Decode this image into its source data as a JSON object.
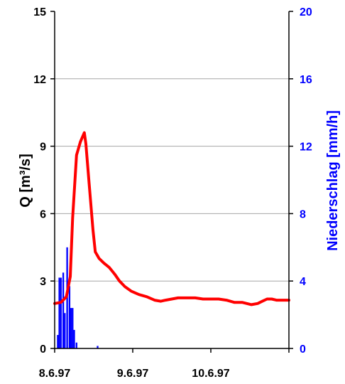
{
  "chart_data": {
    "type": "line",
    "title": "",
    "xlabel": "",
    "ylabel": "Q [m³/s]",
    "y2label": "Niederschlag [mm/h]",
    "x_tick_labels": [
      "8.6.97",
      "9.6.97",
      "10.6.97"
    ],
    "x_tick_values": [
      0,
      1,
      2
    ],
    "xlim": [
      0,
      3
    ],
    "ylim": [
      0,
      15
    ],
    "y_ticks": [
      0,
      3,
      6,
      9,
      12,
      15
    ],
    "y2lim": [
      0,
      20
    ],
    "y2_ticks": [
      0,
      4,
      8,
      12,
      16,
      20
    ],
    "grid": true,
    "series": [
      {
        "axis": "left",
        "kind": "line",
        "color": "#ff0000",
        "points": [
          [
            0.0,
            2.0
          ],
          [
            0.08,
            2.05
          ],
          [
            0.15,
            2.3
          ],
          [
            0.2,
            3.2
          ],
          [
            0.23,
            5.8
          ],
          [
            0.28,
            8.6
          ],
          [
            0.33,
            9.2
          ],
          [
            0.38,
            9.6
          ],
          [
            0.4,
            9.1
          ],
          [
            0.44,
            7.4
          ],
          [
            0.49,
            5.3
          ],
          [
            0.52,
            4.3
          ],
          [
            0.57,
            4.0
          ],
          [
            0.63,
            3.8
          ],
          [
            0.7,
            3.6
          ],
          [
            0.77,
            3.3
          ],
          [
            0.83,
            3.0
          ],
          [
            0.9,
            2.75
          ],
          [
            0.98,
            2.55
          ],
          [
            1.08,
            2.4
          ],
          [
            1.18,
            2.3
          ],
          [
            1.28,
            2.15
          ],
          [
            1.36,
            2.1
          ],
          [
            1.42,
            2.15
          ],
          [
            1.5,
            2.2
          ],
          [
            1.58,
            2.25
          ],
          [
            1.7,
            2.25
          ],
          [
            1.8,
            2.25
          ],
          [
            1.9,
            2.2
          ],
          [
            2.0,
            2.2
          ],
          [
            2.1,
            2.2
          ],
          [
            2.2,
            2.15
          ],
          [
            2.3,
            2.05
          ],
          [
            2.4,
            2.05
          ],
          [
            2.52,
            1.95
          ],
          [
            2.6,
            2.0
          ],
          [
            2.66,
            2.1
          ],
          [
            2.72,
            2.2
          ],
          [
            2.78,
            2.2
          ],
          [
            2.84,
            2.15
          ],
          [
            2.92,
            2.15
          ],
          [
            3.0,
            2.15
          ]
        ]
      },
      {
        "axis": "right",
        "kind": "bar",
        "color": "#0000ff",
        "bar_width": 0.021,
        "points": [
          [
            0.04,
            0.8
          ],
          [
            0.06,
            4.2
          ],
          [
            0.08,
            4.2
          ],
          [
            0.11,
            4.5
          ],
          [
            0.13,
            2.1
          ],
          [
            0.16,
            6.0
          ],
          [
            0.19,
            3.7
          ],
          [
            0.21,
            2.4
          ],
          [
            0.23,
            2.4
          ],
          [
            0.25,
            1.1
          ],
          [
            0.28,
            0.35
          ],
          [
            0.55,
            0.15
          ]
        ]
      }
    ]
  }
}
